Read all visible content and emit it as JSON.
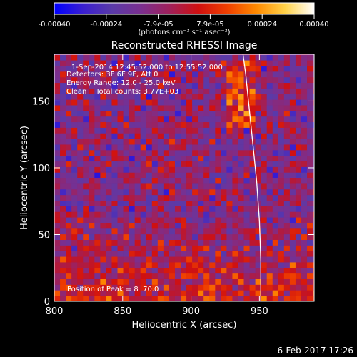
{
  "colorbar": {
    "ticks": [
      "-0.00040",
      "-0.00024",
      "-7.9e-05",
      "7.9e-05",
      "0.00024",
      "0.00040"
    ],
    "units": "(photons cm⁻² s⁻¹ asec⁻²)",
    "range": [
      -0.0004,
      0.0004
    ],
    "stops": [
      "#0000ff",
      "#3a1fd0",
      "#5a3aa8",
      "#7a2f8f",
      "#a0205a",
      "#d01010",
      "#f04000",
      "#ff8a00",
      "#ffd24a",
      "#ffffff"
    ]
  },
  "annotations": {
    "line1": "1-Sep-2014 12:45:52.000 to 12:55:52.000",
    "line2": "Detectors: 3F 6F 9F, Att 0",
    "line3": "Energy Range: 12.0 - 25.0 keV",
    "line4": "Clean    Total counts: 3.77E+03",
    "position": "Position of Peak = 8  70.0"
  },
  "footer": {
    "timestamp": "6-Feb-2017 17:26"
  },
  "chart_data": {
    "type": "heatmap",
    "title": "Reconstructed RHESSI Image",
    "xlabel": "Heliocentric X (arcsec)",
    "ylabel": "Heliocentric Y (arcsec)",
    "xlim": [
      800,
      990
    ],
    "ylim": [
      0,
      185
    ],
    "xticks": [
      800,
      850,
      900,
      950
    ],
    "yticks": [
      0,
      50,
      100,
      150
    ],
    "limb": [
      [
        938,
        185
      ],
      [
        940,
        170
      ],
      [
        942,
        150
      ],
      [
        944,
        130
      ],
      [
        946,
        110
      ],
      [
        948,
        90
      ],
      [
        950,
        60
      ],
      [
        951,
        30
      ],
      [
        951,
        0
      ]
    ]
  }
}
